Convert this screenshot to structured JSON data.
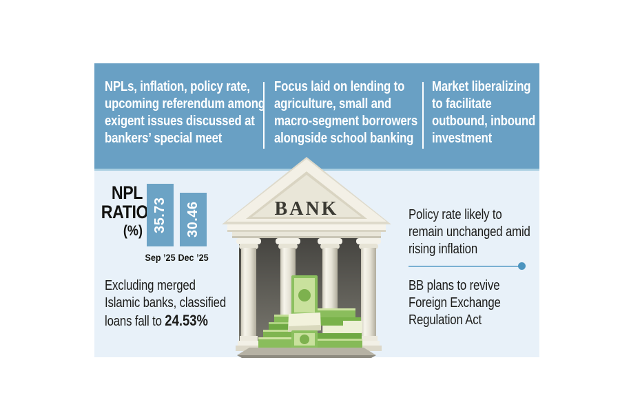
{
  "colors": {
    "header_band": "#69a0c4",
    "panel_bg": "#e8f1f9",
    "bar": "#6ca3c5",
    "divider": "#ffffff",
    "accent_line": "#79b0d2",
    "accent_dot": "#4b94bf",
    "text_dark": "#1c1c1a",
    "text_light": "#ffffff"
  },
  "header": {
    "columns": [
      {
        "lines": [
          "NPLs, inflation, policy rate,",
          "upcoming referendum among",
          "exigent issues discussed at",
          "bankers’ special meet"
        ]
      },
      {
        "lines": [
          "Focus laid on lending to",
          "agriculture, small and",
          "macro-segment borrowers",
          "alongside school banking"
        ]
      },
      {
        "lines": [
          "Market liberalizing",
          "to facilitate",
          "outbound, inbound",
          "investment"
        ]
      }
    ]
  },
  "chart_data": {
    "type": "bar",
    "title": "NPL RATIO (%)",
    "title_lines": [
      "NPL",
      "RATIO",
      "(%)"
    ],
    "categories": [
      "Sep ’25",
      "Dec ’25"
    ],
    "values": [
      35.73,
      30.46
    ],
    "ylim": [
      0,
      35.73
    ],
    "bar_color": "#6ca3c5",
    "value_label_color": "#ffffff",
    "grid": false,
    "legend": false
  },
  "notes": {
    "left": {
      "lines": [
        "Excluding merged",
        "Islamic banks, classified"
      ],
      "line3_prefix": "loans fall to ",
      "line3_bold": "24.53%"
    },
    "right_top": {
      "lines": [
        "Policy rate likely to",
        "remain unchanged amid",
        "rising inflation"
      ]
    },
    "right_bottom": {
      "lines": [
        "BB plans to revive",
        "Foreign Exchange",
        "Regulation Act"
      ]
    }
  },
  "bank": {
    "label": "BANK"
  }
}
